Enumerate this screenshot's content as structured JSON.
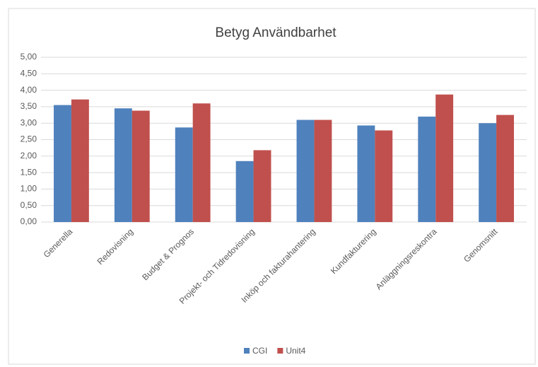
{
  "chart_data": {
    "type": "bar",
    "title": "Betyg Användbarhet",
    "categories": [
      "Generella",
      "Redovisning",
      "Budget & Prognos",
      "Projekt- och Tidredovisning",
      "Inköp och fakturahantering",
      "Kundfakturering",
      "Anläggningsreskontra",
      "Genomsnitt"
    ],
    "series": [
      {
        "name": "CGI",
        "color": "#4f81bd",
        "values": [
          3.55,
          3.45,
          2.87,
          1.85,
          3.1,
          2.93,
          3.2,
          3.0
        ]
      },
      {
        "name": "Unit4",
        "color": "#c0504d",
        "values": [
          3.72,
          3.38,
          3.6,
          2.18,
          3.1,
          2.78,
          3.87,
          3.25
        ]
      }
    ],
    "ylim": [
      0,
      5
    ],
    "yticks": [
      {
        "value": 0,
        "label": "0,00"
      },
      {
        "value": 0.5,
        "label": "0,50"
      },
      {
        "value": 1,
        "label": "1,00"
      },
      {
        "value": 1.5,
        "label": "1,50"
      },
      {
        "value": 2,
        "label": "2,00"
      },
      {
        "value": 2.5,
        "label": "2,50"
      },
      {
        "value": 3,
        "label": "3,00"
      },
      {
        "value": 3.5,
        "label": "3,50"
      },
      {
        "value": 4,
        "label": "4,00"
      },
      {
        "value": 4.5,
        "label": "4,50"
      },
      {
        "value": 5,
        "label": "5,00"
      }
    ],
    "grid": true,
    "legend": "bottom"
  }
}
